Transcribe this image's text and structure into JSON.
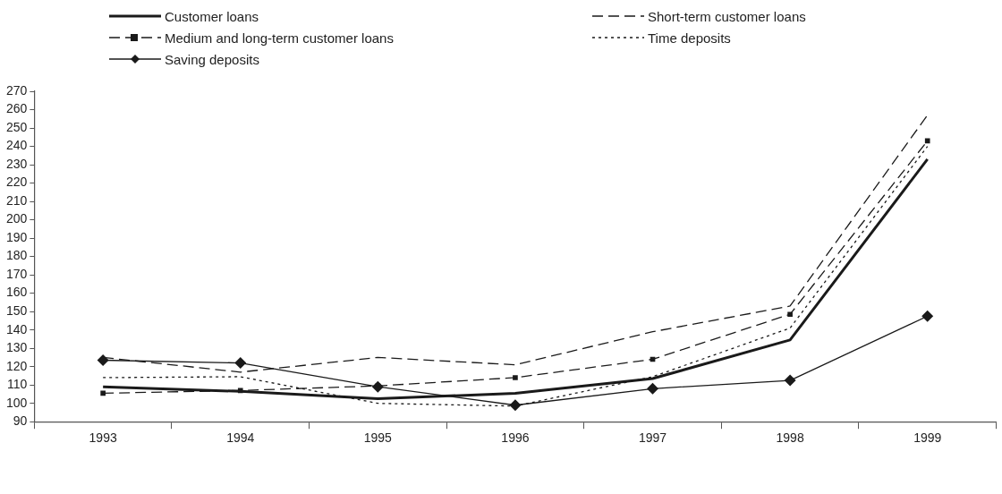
{
  "chart_data": {
    "type": "line",
    "categories": [
      "1993",
      "1994",
      "1995",
      "1996",
      "1997",
      "1998",
      "1999"
    ],
    "ylim": [
      90,
      270
    ],
    "yticks": [
      90,
      100,
      110,
      120,
      130,
      140,
      150,
      160,
      170,
      180,
      190,
      200,
      210,
      220,
      230,
      240,
      250,
      260,
      270
    ],
    "grid": false,
    "legend": "top",
    "series": [
      {
        "name": "Customer loans",
        "color": "#1a1a1a",
        "line_style": "solid",
        "marker": "none",
        "values": [
          109,
          106.5,
          102.5,
          105.5,
          113.5,
          134.5,
          233
        ]
      },
      {
        "name": "Short-term customer loans",
        "color": "#1a1a1a",
        "line_style": "dashed",
        "marker": "none",
        "values": [
          125,
          117,
          125,
          121,
          139,
          153,
          257
        ]
      },
      {
        "name": "Medium and long-term customer loans",
        "color": "#1a1a1a",
        "line_style": "dashed",
        "marker": "square",
        "values": [
          105.5,
          107,
          109.5,
          114,
          124,
          148.5,
          243
        ]
      },
      {
        "name": "Time deposits",
        "color": "#1a1a1a",
        "line_style": "dotted",
        "marker": "none",
        "values": [
          114,
          114.5,
          100,
          98.5,
          114.5,
          141,
          240
        ]
      },
      {
        "name": "Saving deposits",
        "color": "#1a1a1a",
        "line_style": "solid",
        "marker": "diamond",
        "values": [
          123.5,
          122,
          109,
          99,
          108,
          112.5,
          147.5
        ]
      }
    ]
  }
}
